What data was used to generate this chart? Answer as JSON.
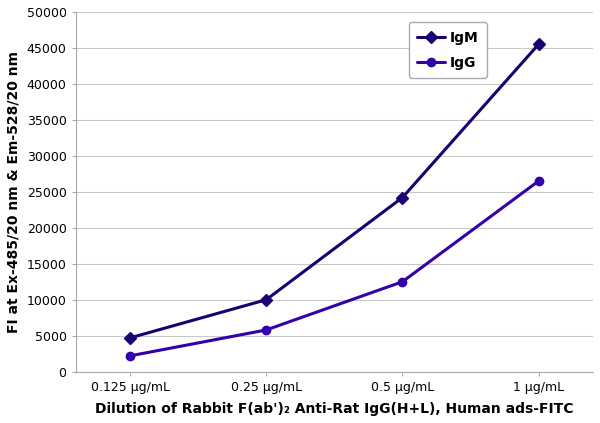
{
  "x_labels": [
    "0.125 μg/mL",
    "0.25 μg/mL",
    "0.5 μg/mL",
    "1 μg/mL"
  ],
  "x_positions": [
    0,
    1,
    2,
    3
  ],
  "IgM_values": [
    4700,
    10000,
    24200,
    45500
  ],
  "IgG_values": [
    2200,
    5800,
    12500,
    26500
  ],
  "IgM_color": "#1A0070",
  "IgG_color": "#3300AA",
  "ylabel": "FI at Ex-485/20 nm & Em-528/20 nm",
  "xlabel": "Dilution of Rabbit F(ab')₂ Anti-Rat IgG(H+L), Human ads-FITC",
  "ylim": [
    0,
    50000
  ],
  "yticks": [
    0,
    5000,
    10000,
    15000,
    20000,
    25000,
    30000,
    35000,
    40000,
    45000,
    50000
  ],
  "legend_labels": [
    "IgM",
    "IgG"
  ],
  "background_color": "#FFFFFF",
  "grid_color": "#C8C8C8",
  "axis_fontsize": 10,
  "tick_fontsize": 9,
  "legend_fontsize": 10,
  "marker_IgM": "D",
  "marker_IgG": "o",
  "linewidth": 2.2,
  "markersize": 6
}
